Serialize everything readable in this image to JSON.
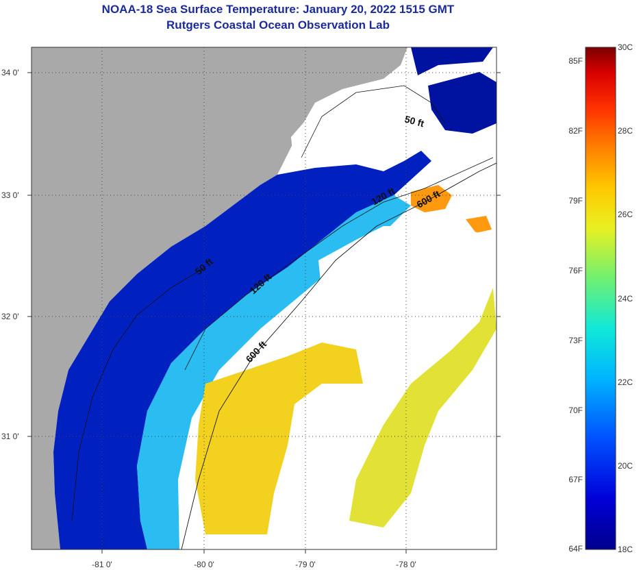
{
  "title": {
    "line1": "NOAA-18 Sea Surface Temperature:  January 20, 2022 1515 GMT",
    "line2": "Rutgers Coastal Ocean Observation Lab"
  },
  "map": {
    "lon_labels": [
      "-81 0'",
      "-80 0'",
      "-79 0'",
      "-78 0'"
    ],
    "lat_labels": [
      "34 0'",
      "33 0'",
      "32 0'",
      "31 0'"
    ],
    "contour_labels": [
      {
        "text": "50 ft"
      },
      {
        "text": "120 ft"
      },
      {
        "text": "600 ft"
      },
      {
        "text": "50 ft"
      },
      {
        "text": "120 ft"
      },
      {
        "text": "600 ft"
      }
    ]
  },
  "colorbar": {
    "fahrenheit_labels": [
      "85F",
      "82F",
      "79F",
      "76F",
      "73F",
      "70F",
      "67F",
      "64F"
    ],
    "celsius_labels": [
      "30C",
      "28C",
      "26C",
      "24C",
      "22C",
      "20C",
      "18C"
    ]
  },
  "colors": {
    "land": "#a9a9a9",
    "title": "#1a2a9a"
  }
}
